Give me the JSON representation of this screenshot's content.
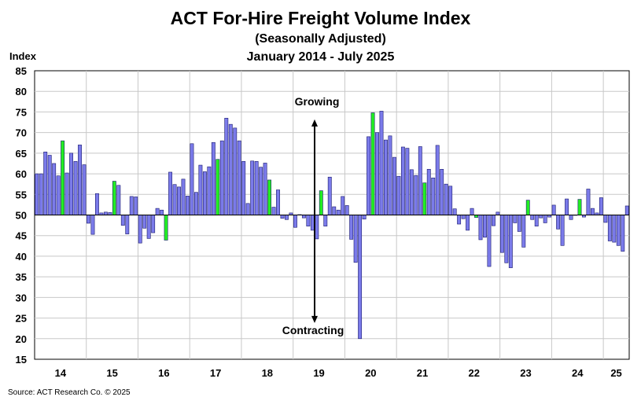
{
  "chart_data": {
    "type": "bar",
    "title": "ACT For-Hire Freight Volume Index",
    "subtitle": "(Seasonally Adjusted)",
    "period": "January 2014 - July 2025",
    "ylabel": "Index",
    "xlabel": "",
    "ylim": [
      15,
      85
    ],
    "ytick_step": 5,
    "baseline": 50,
    "grid": true,
    "x_tick_labels": [
      "14",
      "15",
      "16",
      "17",
      "18",
      "19",
      "20",
      "21",
      "22",
      "23",
      "24",
      "25"
    ],
    "annotations": {
      "growing": "Growing",
      "contracting": "Contracting"
    },
    "colors": {
      "bar": "#7b7bea",
      "bar_highlight": "#22ee22",
      "bar_border": "#1a1a6e",
      "grid": "#c8c8c8",
      "arrow": "#000000"
    },
    "series": [
      {
        "name": "Index (monthly, Jan 2014 - Jul 2025)",
        "values": [
          60,
          60,
          65.3,
          64.5,
          62.5,
          59.5,
          68,
          60.2,
          65,
          63,
          67,
          62.2,
          48,
          45.3,
          55.2,
          50.5,
          50.7,
          50.6,
          58.2,
          57.2,
          47.5,
          45.4,
          54.5,
          54.4,
          43.2,
          46.8,
          44.3,
          45.7,
          51.6,
          51.2,
          43.9,
          60.4,
          57.4,
          56.8,
          58.7,
          54.6,
          67.3,
          55.5,
          62.1,
          60.5,
          61.7,
          67.6,
          63.5,
          68,
          73.5,
          72,
          71.1,
          68,
          63,
          52.8,
          63.1,
          63,
          61.6,
          62.6,
          58.5,
          51.9,
          56.1,
          49.2,
          48.9,
          50.5,
          47,
          50.1,
          49.3,
          47.3,
          46.3,
          44.2,
          55.9,
          47.3,
          59.2,
          52,
          51.2,
          54.5,
          52.3,
          44.1,
          38.5,
          20,
          49,
          69,
          74.8,
          70,
          75.2,
          68.2,
          69.2,
          64,
          59.4,
          66.5,
          66.2,
          61,
          59.6,
          66.6,
          57.8,
          61.1,
          59,
          66.9,
          61.1,
          57.5,
          57,
          51.5,
          47.8,
          49.1,
          46.3,
          51.6,
          49.4,
          44,
          44.6,
          37.5,
          47.4,
          50.7,
          40.9,
          38.4,
          37.2,
          48.1,
          46,
          42.2,
          53.6,
          48.9,
          47.3,
          49.3,
          48.1,
          49.5,
          52.4,
          46.6,
          42.6,
          53.9,
          48.9,
          50,
          53.8,
          49.5,
          56.3,
          51.6,
          50.5,
          54.2,
          48.2,
          43.7,
          43.4,
          42.6,
          41.2,
          52.2
        ]
      }
    ],
    "highlight_indices": [
      6,
      18,
      30,
      42,
      54,
      66,
      78,
      90,
      102,
      114,
      126,
      138
    ]
  },
  "footer": {
    "source": "Source:  ACT Research Co. © 2025"
  }
}
